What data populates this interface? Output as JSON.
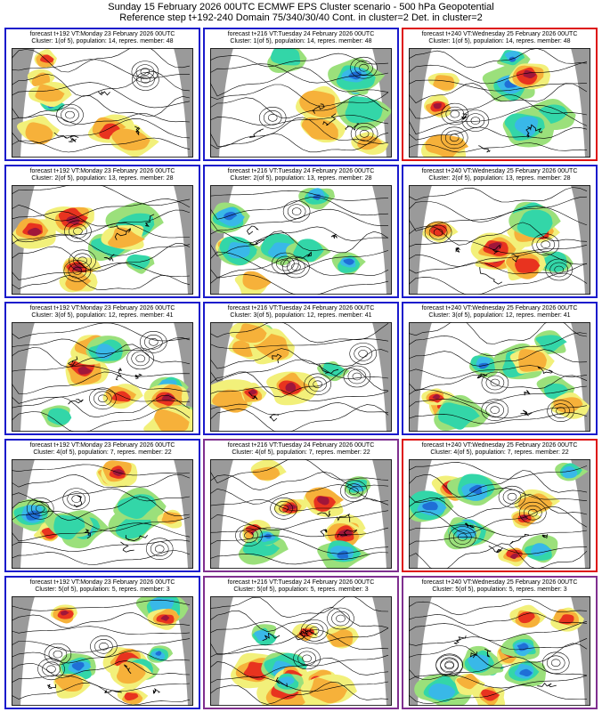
{
  "header": {
    "line1": "Sunday 15 February 2026 00UTC ECMWF EPS Cluster scenario - 500 hPa Geopotential",
    "line2": "Reference step t+192-240 Domain 75/340/30/40 Cont. in cluster=2 Det. in cluster=2"
  },
  "colors": {
    "blue_frame": "#1a1acc",
    "purple_frame": "#7f2f8f",
    "red_frame": "#dd1111",
    "anomaly_scale": [
      "#0a2a8c",
      "#1f6fd6",
      "#39b8e8",
      "#33d6a8",
      "#9be07b",
      "#f2f07a",
      "#f6b13a",
      "#e8331f",
      "#a0163a",
      "#6a1030"
    ],
    "no_data_grey": "#9a9a9a",
    "contour": "#000000",
    "coast": "#000000"
  },
  "chart_data": {
    "type": "map-grid",
    "rows": 5,
    "cols": 3,
    "panels": [
      {
        "line1": "forecast t+192 VT:Monday 23 February 2026 00UTC",
        "line2": "Cluster: 1(of 5), population: 14, repres. member: 48",
        "frame": "blue"
      },
      {
        "line1": "forecast t+216 VT:Tuesday 24 February 2026 00UTC",
        "line2": "Cluster: 1(of 5), population: 14, repres. member: 48",
        "frame": "blue"
      },
      {
        "line1": "forecast t+240 VT:Wednesday 25 February 2026 00UTC",
        "line2": "Cluster: 1(of 5), population: 14, repres. member: 48",
        "frame": "red"
      },
      {
        "line1": "forecast t+192 VT:Monday 23 February 2026 00UTC",
        "line2": "Cluster: 2(of 5), population: 13, repres. member: 28",
        "frame": "blue"
      },
      {
        "line1": "forecast t+216 VT:Tuesday 24 February 2026 00UTC",
        "line2": "Cluster: 2(of 5), population: 13, repres. member: 28",
        "frame": "blue"
      },
      {
        "line1": "forecast t+240 VT:Wednesday 25 February 2026 00UTC",
        "line2": "Cluster: 2(of 5), population: 13, repres. member: 28",
        "frame": "blue"
      },
      {
        "line1": "forecast t+192 VT:Monday 23 February 2026 00UTC",
        "line2": "Cluster: 3(of 5), population: 12, repres. member: 41",
        "frame": "blue"
      },
      {
        "line1": "forecast t+216 VT:Tuesday 24 February 2026 00UTC",
        "line2": "Cluster: 3(of 5), population: 12, repres. member: 41",
        "frame": "blue"
      },
      {
        "line1": "forecast t+240 VT:Wednesday 25 February 2026 00UTC",
        "line2": "Cluster: 3(of 5), population: 12, repres. member: 41",
        "frame": "blue"
      },
      {
        "line1": "forecast t+192 VT:Monday 23 February 2026 00UTC",
        "line2": "Cluster: 4(of 5), population: 7, repres. member: 22",
        "frame": "blue"
      },
      {
        "line1": "forecast t+216 VT:Tuesday 24 February 2026 00UTC",
        "line2": "Cluster: 4(of 5), population: 7, repres. member: 22",
        "frame": "purple"
      },
      {
        "line1": "forecast t+240 VT:Wednesday 25 February 2026 00UTC",
        "line2": "Cluster: 4(of 5), population: 7, repres. member: 22",
        "frame": "red"
      },
      {
        "line1": "forecast t+192 VT:Monday 23 February 2026 00UTC",
        "line2": "Cluster: 5(of 5), population: 5, repres. member: 3",
        "frame": "blue"
      },
      {
        "line1": "forecast t+216 VT:Tuesday 24 February 2026 00UTC",
        "line2": "Cluster: 5(of 5), population: 5, repres. member: 3",
        "frame": "purple"
      },
      {
        "line1": "forecast t+240 VT:Wednesday 25 February 2026 00UTC",
        "line2": "Cluster: 5(of 5), population: 5, repres. member: 3",
        "frame": "purple"
      }
    ]
  }
}
